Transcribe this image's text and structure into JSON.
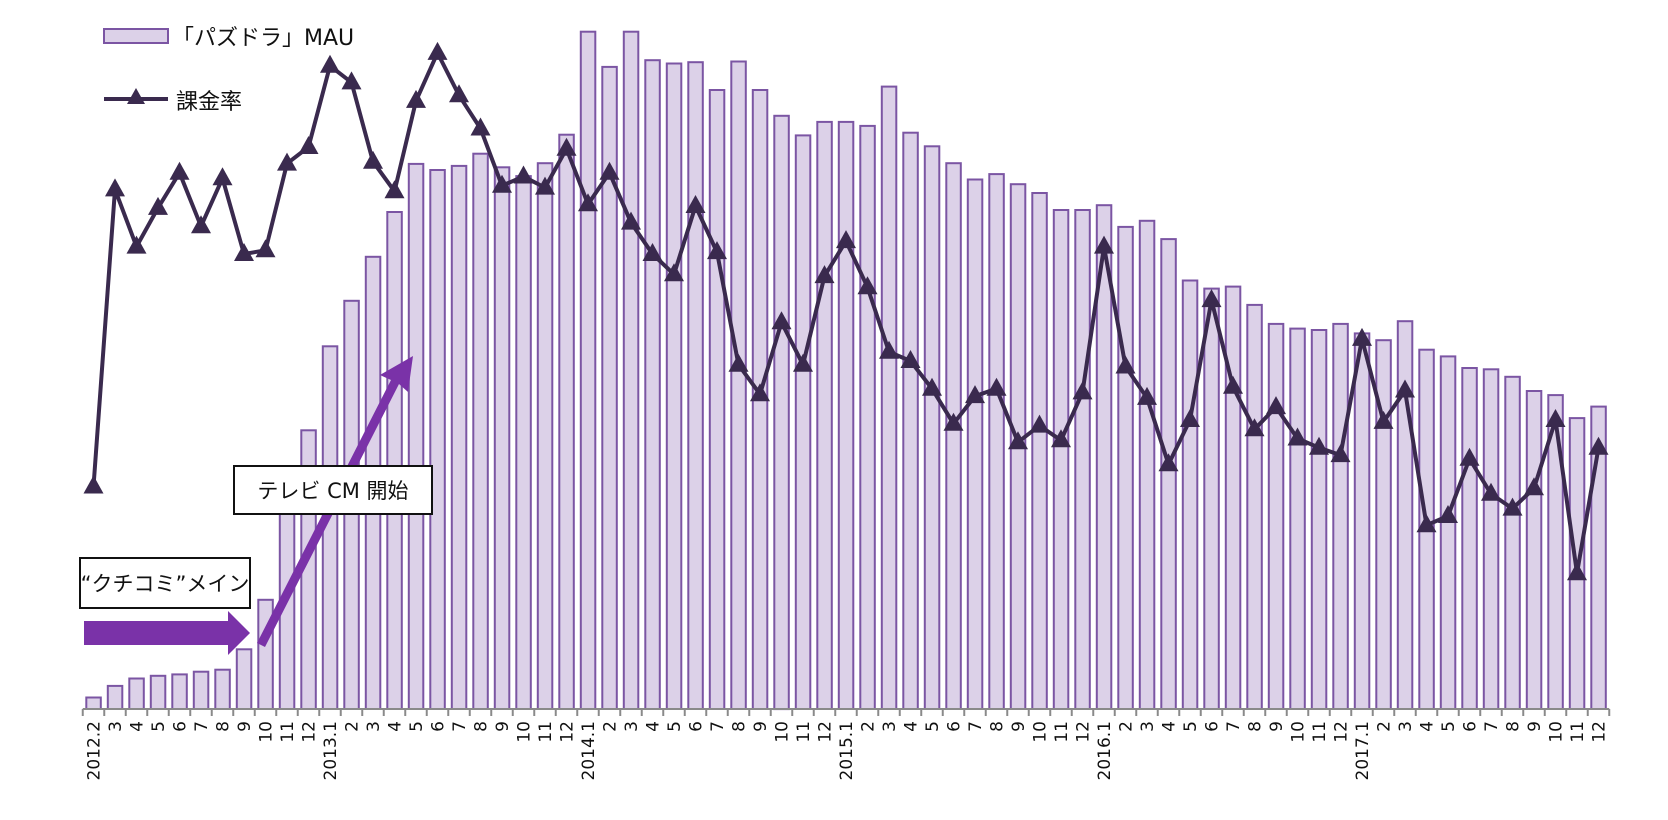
{
  "chart_data": {
    "type": "bar",
    "title": "",
    "xlabel": "",
    "ylabel": "",
    "grid": false,
    "legend_position": "top-left",
    "colors": {
      "bar_fill": "#dcd1e8",
      "bar_stroke": "#7b55a3",
      "line": "#3a2a4e",
      "arrow": "#7a32a8"
    },
    "categories": [
      "2012.2",
      "3",
      "4",
      "5",
      "6",
      "7",
      "8",
      "9",
      "10",
      "11",
      "12",
      "2013.1",
      "2",
      "3",
      "4",
      "5",
      "6",
      "7",
      "8",
      "9",
      "10",
      "11",
      "12",
      "2014.1",
      "2",
      "3",
      "4",
      "5",
      "6",
      "7",
      "8",
      "9",
      "10",
      "11",
      "12",
      "2015.1",
      "2",
      "3",
      "4",
      "5",
      "6",
      "7",
      "8",
      "9",
      "10",
      "11",
      "12",
      "2016.1",
      "2",
      "3",
      "4",
      "5",
      "6",
      "7",
      "8",
      "9",
      "10",
      "11",
      "12",
      "2017.1",
      "2",
      "3",
      "4",
      "5",
      "6",
      "7",
      "8",
      "9",
      "10",
      "11",
      "12"
    ],
    "series": [
      {
        "name": "「パズドラ」MAU",
        "type": "bar",
        "values": [
          1.7,
          3.4,
          4.5,
          4.9,
          5.1,
          5.5,
          5.8,
          8.8,
          16.1,
          29.0,
          41.1,
          53.5,
          60.2,
          66.7,
          73.3,
          80.4,
          79.5,
          80.1,
          81.9,
          79.9,
          78.6,
          80.5,
          84.7,
          99.9,
          94.7,
          99.9,
          95.7,
          95.2,
          95.4,
          91.3,
          95.5,
          91.3,
          87.5,
          84.6,
          86.6,
          86.6,
          86.0,
          91.8,
          85.0,
          83.0,
          80.5,
          78.1,
          78.9,
          77.4,
          76.1,
          73.6,
          73.6,
          74.3,
          71.1,
          72.0,
          69.3,
          63.2,
          62.0,
          62.3,
          59.6,
          56.8,
          56.1,
          55.9,
          56.8,
          55.4,
          54.4,
          57.2,
          53.0,
          52.0,
          50.3,
          50.1,
          49.0,
          46.9,
          46.3,
          42.9,
          44.6
        ]
      },
      {
        "name": "課金率",
        "type": "line",
        "marker": "triangle",
        "values": [
          38.3,
          54.4,
          51.3,
          53.4,
          55.3,
          52.4,
          55.0,
          50.9,
          51.1,
          55.8,
          56.7,
          61.1,
          60.2,
          55.9,
          54.3,
          59.2,
          61.8,
          59.5,
          57.7,
          54.6,
          55.1,
          54.5,
          56.6,
          53.6,
          55.3,
          52.6,
          50.9,
          49.8,
          53.5,
          51.0,
          44.9,
          43.3,
          47.2,
          44.9,
          49.7,
          51.6,
          49.1,
          45.6,
          45.1,
          43.6,
          41.7,
          43.2,
          43.6,
          40.7,
          41.6,
          40.8,
          43.4,
          51.3,
          44.8,
          43.1,
          39.5,
          41.9,
          48.4,
          43.7,
          41.4,
          42.6,
          40.9,
          40.4,
          40.0,
          46.3,
          41.8,
          43.5,
          36.2,
          36.7,
          39.8,
          37.9,
          37.1,
          38.2,
          41.9,
          33.6,
          40.4
        ]
      }
    ],
    "legend": [
      {
        "label": "「パズドラ」MAU",
        "symbol": "bar"
      },
      {
        "label": "課金率",
        "symbol": "line-triangle"
      }
    ],
    "annotations": [
      {
        "text": "“クチコミ”メイン",
        "kind": "callout"
      },
      {
        "text": "テレビ CM 開始",
        "kind": "callout"
      }
    ]
  }
}
